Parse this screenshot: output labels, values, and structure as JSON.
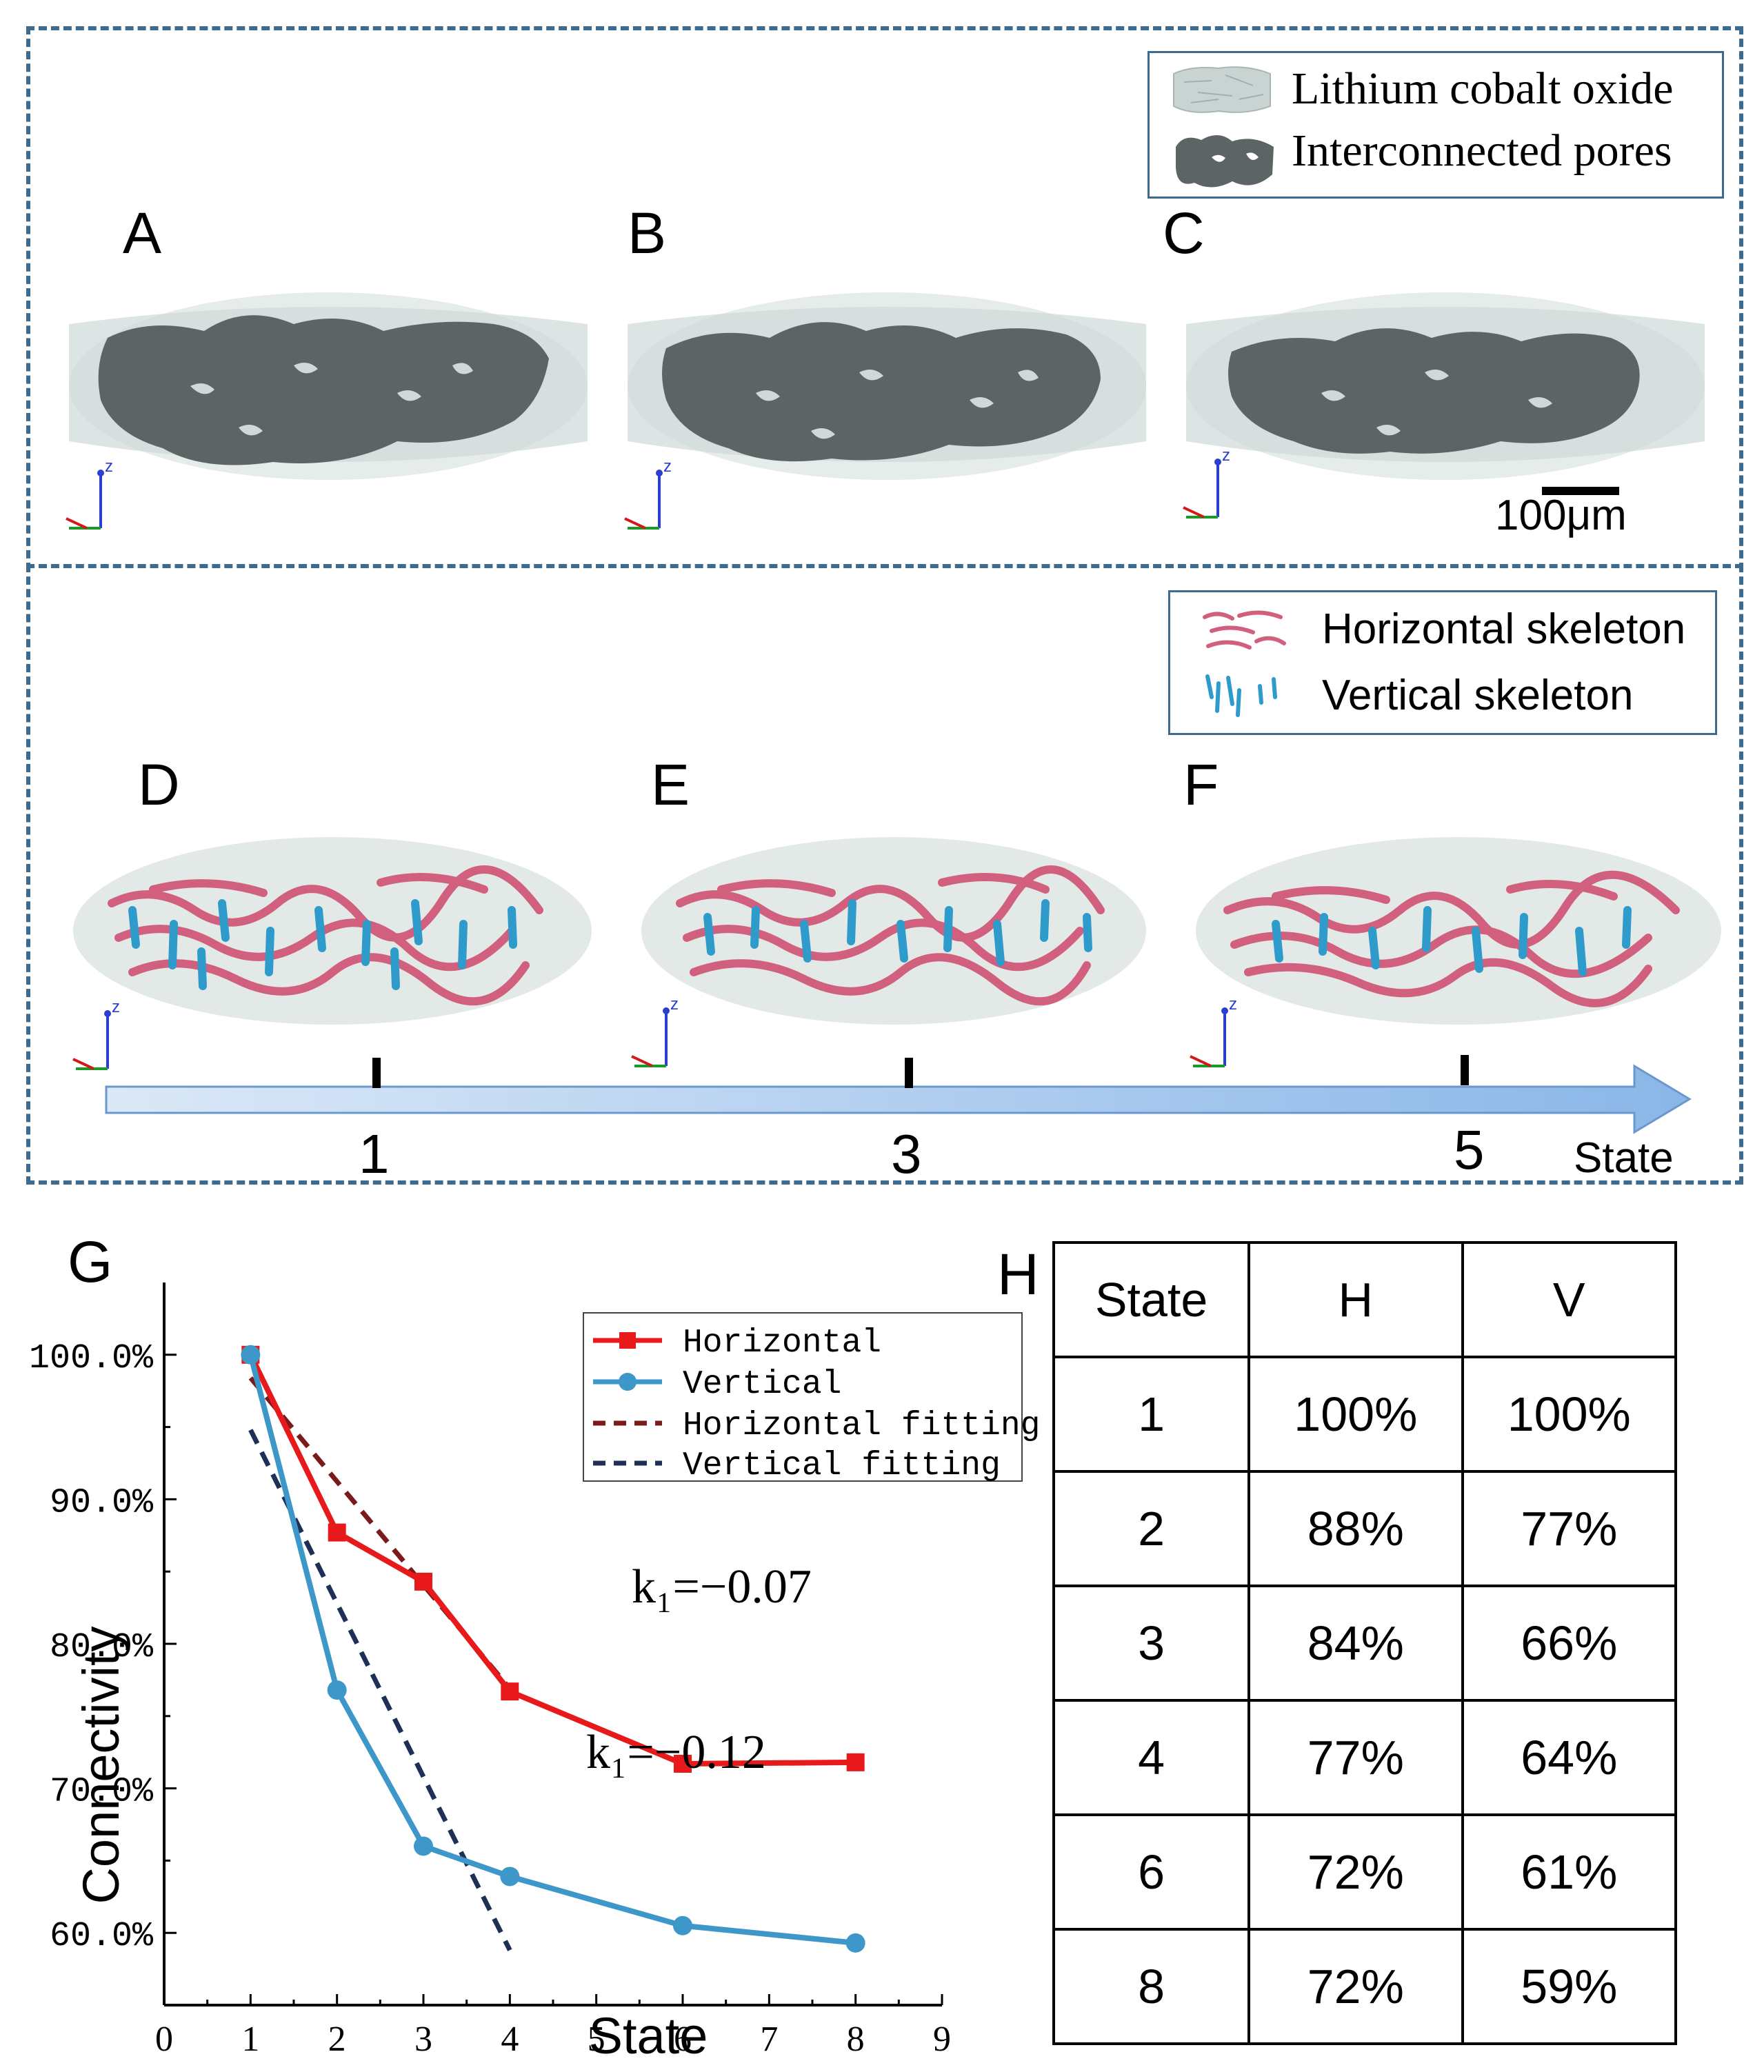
{
  "panels": {
    "a": "A",
    "b": "B",
    "c": "C",
    "d": "D",
    "e": "E",
    "f": "F",
    "g": "G",
    "h": "H"
  },
  "legend_top": {
    "item1": "Lithium cobalt oxide",
    "item2": "Interconnected pores"
  },
  "legend_mid": {
    "item1": "Horizontal skeleton",
    "item2": "Vertical skeleton"
  },
  "scale_bar": "100μm",
  "axis_label_z": "z",
  "state_axis": {
    "ticks": [
      "1",
      "3",
      "5"
    ],
    "label": "State"
  },
  "colors": {
    "dashed_border": "#3d6a8f",
    "horizontal": "#e8191b",
    "vertical": "#3e97c9",
    "horizontal_fit": "#7a1a1a",
    "vertical_fit": "#1f2f55",
    "pores": "#5d6466",
    "lco": "#c9d4d2",
    "h_skeleton": "#d1607e",
    "v_skeleton": "#2e9bcb"
  },
  "chart_data": {
    "type": "line",
    "ylabel": "Connectivity",
    "xlabel": "State",
    "xlim": [
      0,
      9
    ],
    "ylim": [
      55,
      105
    ],
    "x_ticks": [
      "0",
      "1",
      "2",
      "3",
      "4",
      "5",
      "6",
      "7",
      "8",
      "9"
    ],
    "y_ticks": [
      "60.0%",
      "70.0%",
      "80.0%",
      "90.0%",
      "100.0%"
    ],
    "series": [
      {
        "name": "Horizontal",
        "x": [
          1,
          2,
          3,
          4,
          6,
          8
        ],
        "values": [
          100,
          87.7,
          84.3,
          76.7,
          71.7,
          71.8
        ]
      },
      {
        "name": "Vertical",
        "x": [
          1,
          2,
          3,
          4,
          6,
          8
        ],
        "values": [
          100,
          76.8,
          66.0,
          63.9,
          60.5,
          59.3
        ]
      }
    ],
    "fits": [
      {
        "name": "Horizontal fitting",
        "x": [
          1,
          4
        ],
        "values": [
          98.4,
          76.9
        ]
      },
      {
        "name": "Vertical fitting",
        "x": [
          1,
          4
        ],
        "values": [
          94.8,
          58.8
        ]
      }
    ],
    "annotations": [
      {
        "text": "k₁=−0.07"
      },
      {
        "text": "k₁=−0.12"
      }
    ]
  },
  "table_h": {
    "headers": [
      "State",
      "H",
      "V"
    ],
    "rows": [
      [
        "1",
        "100%",
        "100%"
      ],
      [
        "2",
        "88%",
        "77%"
      ],
      [
        "3",
        "84%",
        "66%"
      ],
      [
        "4",
        "77%",
        "64%"
      ],
      [
        "6",
        "72%",
        "61%"
      ],
      [
        "8",
        "72%",
        "59%"
      ]
    ]
  }
}
